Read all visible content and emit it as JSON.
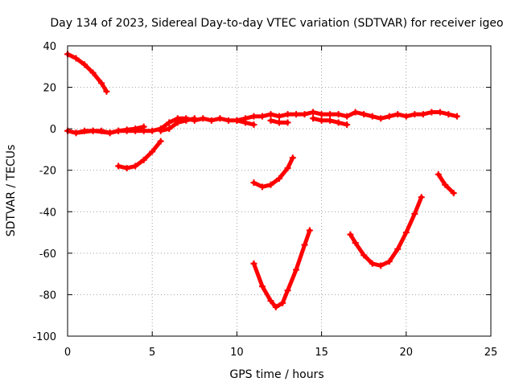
{
  "chart_data": {
    "type": "scatter",
    "title": "Day 134 of 2023, Sidereal Day-to-day VTEC variation (SDTVAR) for receiver igeo",
    "xlabel": "GPS time / hours",
    "ylabel": "SDTVAR / TECUs",
    "xlim": [
      0,
      25
    ],
    "ylim": [
      -100,
      40
    ],
    "xticks": [
      "0",
      "5",
      "10",
      "15",
      "20",
      "25"
    ],
    "yticks": [
      "-100",
      "-80",
      "-60",
      "-40",
      "-20",
      "0",
      "20",
      "40"
    ],
    "xtick_values": [
      0,
      5,
      10,
      15,
      20,
      25
    ],
    "ytick_values": [
      -100,
      -80,
      -60,
      -40,
      -20,
      0,
      20,
      40
    ],
    "grid": true,
    "series_color": "#ff0000",
    "series": [
      {
        "name": "arc-1",
        "x": [
          0,
          0.5,
          1.0,
          1.5,
          2.0,
          2.3
        ],
        "y": [
          36,
          34,
          31,
          27,
          22,
          18
        ]
      },
      {
        "name": "arc-2",
        "x": [
          0,
          0.5,
          1.0,
          1.5,
          2.0,
          2.5,
          3.0,
          3.5,
          4.0,
          4.5,
          5.0,
          5.5,
          6.0,
          6.5,
          7.0,
          7.5,
          8.0,
          8.5,
          9.0,
          9.5,
          10.0,
          10.5,
          11.0,
          11.5,
          12.0,
          12.5,
          13.0,
          13.5,
          14.0,
          14.5,
          15.0,
          15.5,
          16.0,
          16.5,
          17.0,
          17.5,
          18.0,
          18.5,
          19.0,
          19.5,
          20.0,
          20.5,
          21.0,
          21.5,
          22.0,
          22.5,
          23.0
        ],
        "y": [
          -1,
          -2,
          -1,
          -1,
          -1,
          -2,
          -1,
          -1,
          -1,
          -1,
          -1,
          0,
          3,
          5,
          5,
          4,
          5,
          4,
          5,
          4,
          4,
          5,
          6,
          6,
          7,
          6,
          7,
          7,
          7,
          8,
          7,
          7,
          7,
          6,
          8,
          7,
          6,
          5,
          6,
          7,
          6,
          7,
          7,
          8,
          8,
          7,
          6
        ]
      },
      {
        "name": "arc-3",
        "x": [
          0.5,
          1.5,
          2.5,
          3.0,
          3.5,
          4.0,
          4.5
        ],
        "y": [
          -2,
          -1,
          -2,
          -1,
          -0.5,
          0,
          1
        ]
      },
      {
        "name": "arc-4",
        "x": [
          5.5,
          6.0,
          6.5,
          7.0,
          7.5
        ],
        "y": [
          -1,
          0,
          3,
          4,
          5
        ]
      },
      {
        "name": "arc-5",
        "x": [
          10.0,
          10.5,
          11.0
        ],
        "y": [
          4,
          3,
          2
        ]
      },
      {
        "name": "arc-6",
        "x": [
          12.0,
          12.5,
          13.0
        ],
        "y": [
          4,
          3,
          3
        ]
      },
      {
        "name": "arc-7",
        "x": [
          14.5,
          15.0,
          15.5,
          16.0,
          16.5
        ],
        "y": [
          5,
          4,
          4,
          3,
          2
        ]
      },
      {
        "name": "arc-8",
        "x": [
          3.0,
          3.5,
          4.0,
          4.5,
          5.0,
          5.5
        ],
        "y": [
          -18,
          -19,
          -18,
          -15,
          -11,
          -6
        ]
      },
      {
        "name": "arc-9",
        "x": [
          11.0,
          11.5,
          12.0,
          12.5,
          13.0,
          13.3
        ],
        "y": [
          -26,
          -28,
          -27,
          -24,
          -19,
          -14
        ]
      },
      {
        "name": "arc-10",
        "x": [
          11.0,
          11.5,
          12.0,
          12.3,
          12.7,
          13.0,
          13.5,
          14.0,
          14.3
        ],
        "y": [
          -65,
          -76,
          -83,
          -86,
          -84,
          -78,
          -68,
          -56,
          -49
        ]
      },
      {
        "name": "arc-11",
        "x": [
          16.7,
          17.0,
          17.5,
          18.0,
          18.5,
          19.0,
          19.5,
          20.0,
          20.5,
          20.9
        ],
        "y": [
          -51,
          -55,
          -61,
          -65,
          -66,
          -64,
          -58,
          -50,
          -41,
          -33
        ]
      },
      {
        "name": "arc-12",
        "x": [
          21.9,
          22.3,
          22.8
        ],
        "y": [
          -22,
          -27,
          -31
        ]
      }
    ]
  }
}
